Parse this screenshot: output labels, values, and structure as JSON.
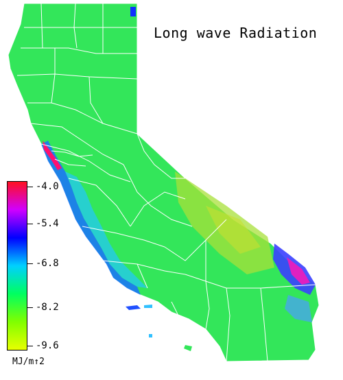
{
  "title": "Long wave Radiation",
  "legend": {
    "unit": "MJ/m↑2",
    "ticks": [
      "-4.0",
      "-5.4",
      "-6.8",
      "-8.2",
      "-9.6"
    ],
    "values": [
      -4.0,
      -5.4,
      -6.8,
      -8.2,
      -9.6
    ],
    "colors": [
      "#ff1020",
      "#d000ff",
      "#0000ff",
      "#00d0ff",
      "#00ff60",
      "#80ff00",
      "#e8ff00"
    ]
  },
  "map": {
    "region": "California",
    "base_color": "#33e65a",
    "boundary_color": "#ffffff"
  }
}
